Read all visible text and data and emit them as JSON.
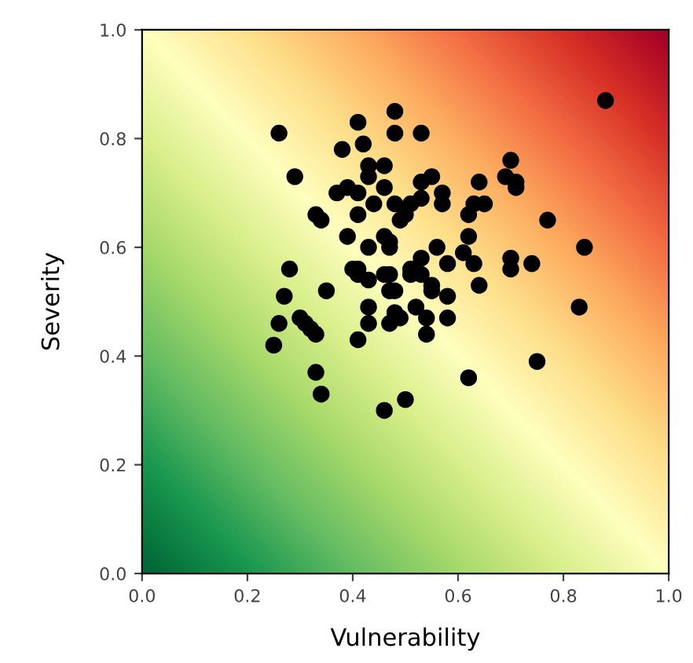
{
  "chart_data": {
    "type": "scatter",
    "xlabel": "Vulnerability",
    "ylabel": "Severity",
    "xlim": [
      0,
      1
    ],
    "ylim": [
      0,
      1
    ],
    "xticks": [
      {
        "value": 0,
        "label": "0.0"
      },
      0.2,
      0.4,
      0.6,
      0.8,
      {
        "value": 1,
        "label": "1.0"
      }
    ],
    "yticks": [
      {
        "value": 0,
        "label": "0.0"
      },
      0.2,
      0.4,
      0.6,
      0.8,
      {
        "value": 1,
        "label": "1.0"
      }
    ],
    "grid": false,
    "legend": false,
    "marker": "circle",
    "series": [
      {
        "color": "#000000",
        "x": [
          0.26,
          0.29,
          0.28,
          0.27,
          0.26,
          0.25,
          0.3,
          0.31,
          0.32,
          0.33,
          0.33,
          0.34,
          0.33,
          0.34,
          0.35,
          0.39,
          0.38,
          0.37,
          0.39,
          0.41,
          0.41,
          0.42,
          0.43,
          0.43,
          0.46,
          0.44,
          0.46,
          0.48,
          0.41,
          0.48,
          0.48,
          0.53,
          0.4,
          0.41,
          0.41,
          0.43,
          0.43,
          0.43,
          0.43,
          0.41,
          0.46,
          0.47,
          0.47,
          0.46,
          0.47,
          0.47,
          0.48,
          0.47,
          0.48,
          0.49,
          0.46,
          0.5,
          0.49,
          0.5,
          0.51,
          0.53,
          0.53,
          0.55,
          0.57,
          0.57,
          0.56,
          0.53,
          0.51,
          0.51,
          0.53,
          0.55,
          0.55,
          0.52,
          0.54,
          0.54,
          0.58,
          0.58,
          0.58,
          0.61,
          0.62,
          0.62,
          0.63,
          0.64,
          0.65,
          0.63,
          0.64,
          0.62,
          0.69,
          0.7,
          0.71,
          0.71,
          0.7,
          0.7,
          0.74,
          0.77,
          0.75,
          0.84,
          0.83,
          0.88
        ],
        "values": [
          0.81,
          0.73,
          0.56,
          0.51,
          0.46,
          0.42,
          0.47,
          0.46,
          0.45,
          0.44,
          0.37,
          0.33,
          0.66,
          0.65,
          0.52,
          0.62,
          0.78,
          0.7,
          0.71,
          0.7,
          0.83,
          0.79,
          0.75,
          0.73,
          0.75,
          0.68,
          0.71,
          0.68,
          0.66,
          0.85,
          0.81,
          0.81,
          0.56,
          0.56,
          0.55,
          0.6,
          0.54,
          0.49,
          0.46,
          0.43,
          0.62,
          0.61,
          0.6,
          0.55,
          0.55,
          0.52,
          0.52,
          0.46,
          0.48,
          0.47,
          0.3,
          0.32,
          0.65,
          0.66,
          0.68,
          0.69,
          0.72,
          0.73,
          0.7,
          0.68,
          0.6,
          0.58,
          0.56,
          0.55,
          0.55,
          0.53,
          0.52,
          0.49,
          0.47,
          0.44,
          0.51,
          0.57,
          0.47,
          0.59,
          0.62,
          0.66,
          0.68,
          0.72,
          0.68,
          0.57,
          0.53,
          0.36,
          0.73,
          0.76,
          0.72,
          0.71,
          0.58,
          0.56,
          0.57,
          0.65,
          0.39,
          0.6,
          0.49,
          0.87
        ]
      }
    ]
  }
}
